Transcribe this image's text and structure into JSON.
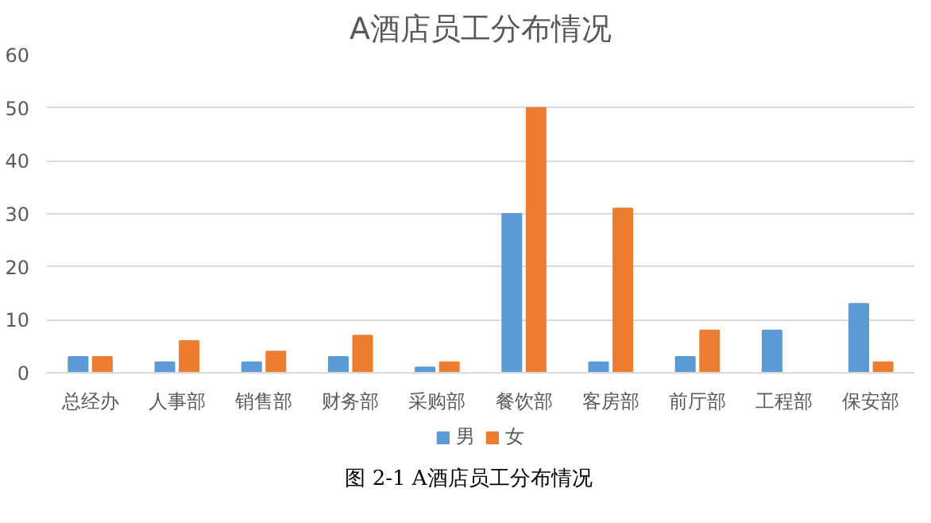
{
  "chart_data": {
    "type": "bar",
    "title": "A酒店员工分布情况",
    "categories": [
      "总经办",
      "人事部",
      "销售部",
      "财务部",
      "采购部",
      "餐饮部",
      "客房部",
      "前厅部",
      "工程部",
      "保安部"
    ],
    "series": [
      {
        "name": "男",
        "color": "#5b9bd5",
        "values": [
          3,
          2,
          2,
          3,
          1,
          30,
          2,
          3,
          8,
          13
        ]
      },
      {
        "name": "女",
        "color": "#ed7d31",
        "values": [
          3,
          6,
          4,
          7,
          2,
          50,
          31,
          8,
          0,
          2
        ]
      }
    ],
    "ylim": [
      0,
      60
    ],
    "yticks": [
      0,
      10,
      20,
      30,
      40,
      50,
      60
    ],
    "grid": "y",
    "legend": "bottom",
    "annotations": [
      "图 2-1 A酒店员工分布情况"
    ]
  }
}
